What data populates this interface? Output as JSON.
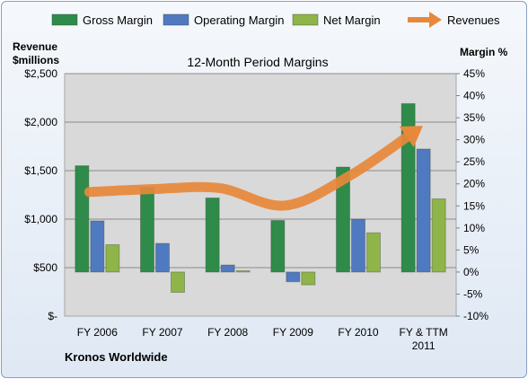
{
  "chart_data": {
    "type": "bar",
    "title": "12-Month Period Margins",
    "left_axis_label_line1": "Revenue",
    "left_axis_label_line2": "$millions",
    "right_axis_label": "Margin %",
    "company": "Kronos Worldwide",
    "categories": [
      "FY 2006",
      "FY 2007",
      "FY 2008",
      "FY 2009",
      "FY 2010",
      "FY & TTM 2011"
    ],
    "category_lines": [
      [
        "FY 2006"
      ],
      [
        "FY 2007"
      ],
      [
        "FY 2008"
      ],
      [
        "FY 2009"
      ],
      [
        "FY 2010"
      ],
      [
        "FY & TTM",
        "2011"
      ]
    ],
    "left_axis": {
      "ticks": [
        0,
        500,
        1000,
        1500,
        2000,
        2500
      ],
      "tick_labels": [
        "$-",
        "$500",
        "$1,000",
        "$1,500",
        "$2,000",
        "$2,500"
      ]
    },
    "right_axis": {
      "min": -10,
      "max": 45,
      "ticks": [
        -10,
        -5,
        0,
        5,
        10,
        15,
        20,
        25,
        30,
        35,
        40,
        45
      ],
      "tick_labels": [
        "-10%",
        "-5%",
        "0%",
        "5%",
        "10%",
        "15%",
        "20%",
        "25%",
        "30%",
        "35%",
        "40%",
        "45%"
      ]
    },
    "legend_position": "top",
    "gridlines": true,
    "series": [
      {
        "name": "Gross Margin",
        "axis": "right",
        "color": "#2e8b4a",
        "values": [
          24.1,
          19.2,
          16.8,
          11.7,
          23.8,
          38.2
        ]
      },
      {
        "name": "Operating Margin",
        "axis": "right",
        "color": "#4f7ac0",
        "values": [
          11.6,
          6.5,
          1.6,
          -2.2,
          12.0,
          27.9
        ]
      },
      {
        "name": "Net Margin",
        "axis": "right",
        "color": "#8fb44a",
        "values": [
          6.2,
          -4.6,
          0.3,
          -2.9,
          8.9,
          16.6
        ]
      },
      {
        "name": "Revenues",
        "axis": "left",
        "type": "line",
        "color": "#e8883a",
        "values": [
          1280,
          1310,
          1320,
          1140,
          1450,
          1910
        ]
      }
    ]
  }
}
